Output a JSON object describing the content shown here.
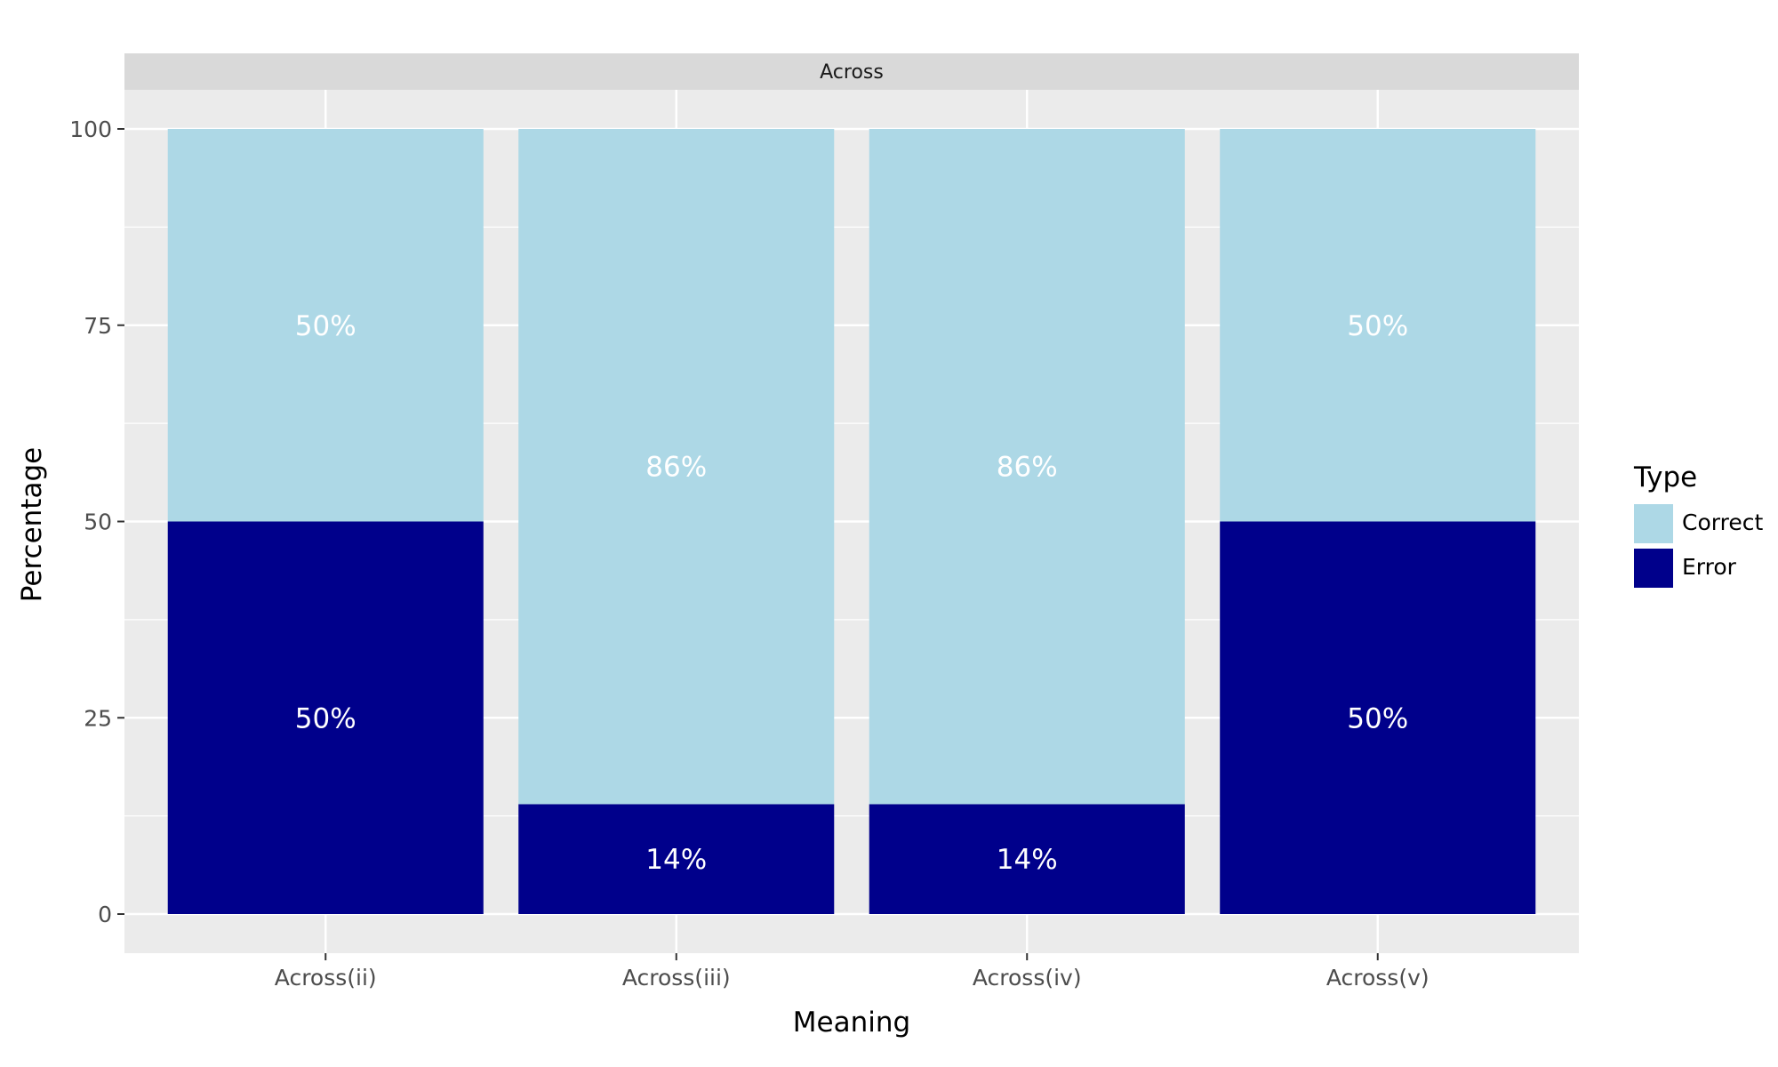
{
  "chart_data": {
    "type": "bar",
    "stacked": true,
    "facet": "Across",
    "categories": [
      "Across(ii)",
      "Across(iii)",
      "Across(iv)",
      "Across(v)"
    ],
    "series": [
      {
        "name": "Error",
        "values": [
          50,
          14,
          14,
          50
        ],
        "labels": [
          "50%",
          "14%",
          "14%",
          "50%"
        ]
      },
      {
        "name": "Correct",
        "values": [
          50,
          86,
          86,
          50
        ],
        "labels": [
          "50%",
          "86%",
          "86%",
          "50%"
        ]
      }
    ],
    "xlabel": "Meaning",
    "ylabel": "Percentage",
    "ylim": [
      -5,
      105
    ],
    "yticks": [
      0,
      25,
      50,
      75,
      100
    ],
    "ytick_labels": [
      "0",
      "25",
      "50",
      "75",
      "100"
    ],
    "grid": true,
    "legend": {
      "title": "Type",
      "position": "right",
      "entries": [
        "Correct",
        "Error"
      ]
    },
    "colors": {
      "Correct": "#add8e6",
      "Error": "#00008b",
      "panel": "#ebebeb",
      "strip": "#d9d9d9",
      "grid": "#ffffff"
    }
  }
}
